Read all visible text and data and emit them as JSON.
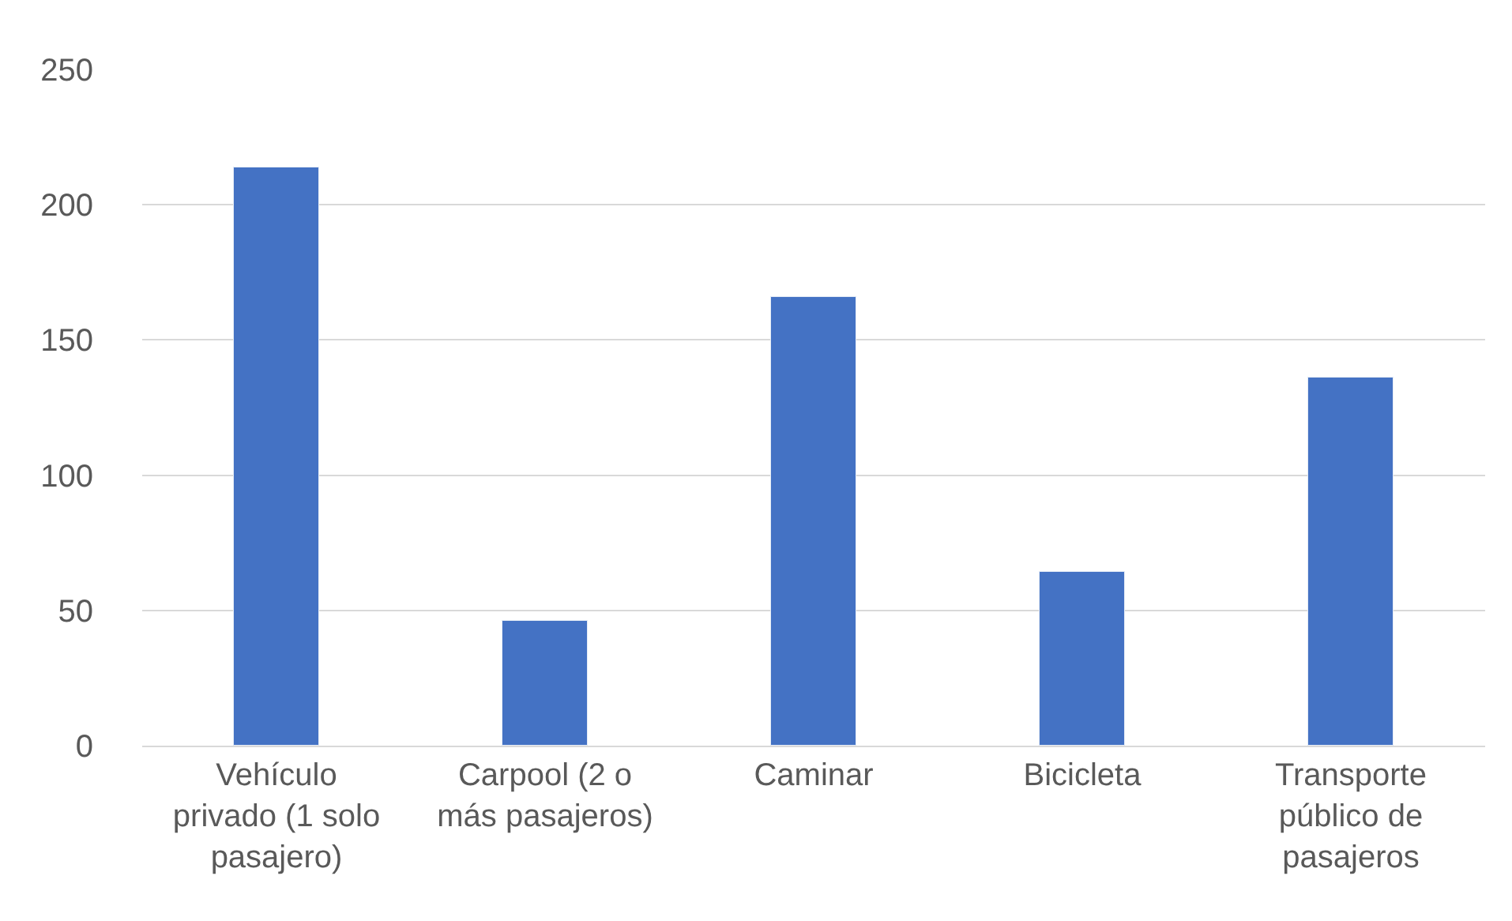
{
  "chart_data": {
    "type": "bar",
    "categories": [
      "Vehículo privado (1 solo pasajero)",
      "Carpool (2 o más pasajeros)",
      "Caminar",
      "Bicicleta",
      "Transporte público de pasajeros"
    ],
    "values": [
      214,
      46,
      166,
      64,
      136
    ],
    "color": "#4472c4",
    "ylim": [
      0,
      250
    ],
    "yticks": [
      0,
      50,
      100,
      150,
      200,
      250
    ],
    "grid": "y",
    "legend": false
  }
}
